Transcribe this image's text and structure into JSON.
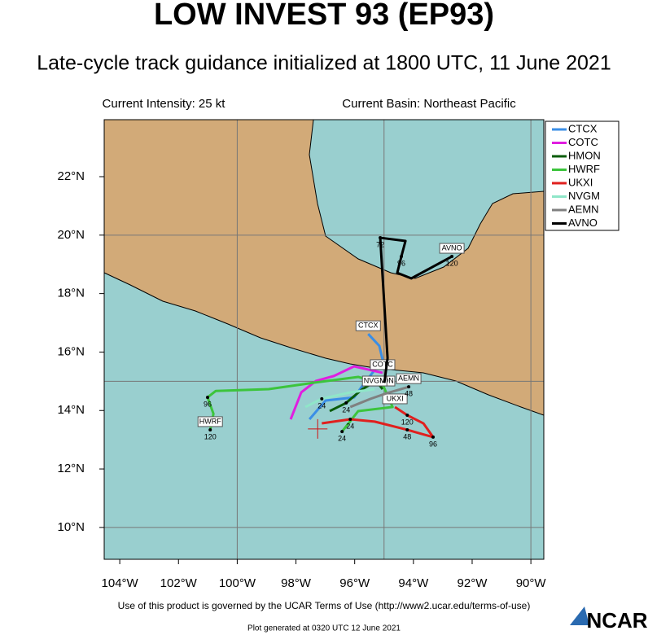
{
  "chart_data": {
    "type": "track-map",
    "title": "LOW INVEST 93 (EP93)",
    "subtitle": "Late-cycle track guidance initialized at 1800 UTC, 11 June 2021",
    "intensity": "Current Intensity: 25 kt",
    "basin": "Current Basin: Northeast Pacific",
    "footer": "Use of this product is governed by the UCAR Terms of Use (http://www2.ucar.edu/terms-of-use)",
    "generated": "Plot generated at 0320 UTC  12 June 2021",
    "logo": "NCAR",
    "xlim": [
      -104.53,
      -89.56
    ],
    "ylim": [
      8.91,
      23.95
    ],
    "xticks": [
      {
        "value": -104,
        "label": "104°W"
      },
      {
        "value": -102,
        "label": "102°W"
      },
      {
        "value": -100,
        "label": "100°W"
      },
      {
        "value": -98,
        "label": "98°W"
      },
      {
        "value": -96,
        "label": "96°W"
      },
      {
        "value": -94,
        "label": "94°W"
      },
      {
        "value": -92,
        "label": "92°W"
      },
      {
        "value": -90,
        "label": "90°W"
      }
    ],
    "yticks": [
      {
        "value": 10,
        "label": "10°N"
      },
      {
        "value": 12,
        "label": "12°N"
      },
      {
        "value": 14,
        "label": "14°N"
      },
      {
        "value": 16,
        "label": "16°N"
      },
      {
        "value": 18,
        "label": "18°N"
      },
      {
        "value": 20,
        "label": "20°N"
      },
      {
        "value": 22,
        "label": "22°N"
      }
    ],
    "grid_lon": [
      -100,
      -95,
      -90
    ],
    "grid_lat": [
      10,
      15,
      20
    ],
    "storm_position": [
      -97.26,
      13.37
    ],
    "series": [
      {
        "name": "CTCX",
        "color": "#3a8ee6",
        "lon": [
          -97.54,
          -96.99,
          -96.02,
          -95.66,
          -95.05,
          -95.16,
          -95.54
        ],
        "lat": [
          13.7,
          14.34,
          14.45,
          14.95,
          15.73,
          16.21,
          16.62
        ],
        "hours": []
      },
      {
        "name": "COTC",
        "color": "#e01ee0",
        "lon": [
          -98.18,
          -97.82,
          -97.32,
          -96.71,
          -96.02,
          -95.05
        ],
        "lat": [
          13.7,
          14.62,
          15.01,
          15.18,
          15.51,
          15.29
        ],
        "hours": []
      },
      {
        "name": "HMON",
        "color": "#0a5c0a",
        "lon": [
          -96.85,
          -96.29,
          -95.74,
          -95.27,
          -95.05
        ],
        "lat": [
          13.98,
          14.26,
          14.73,
          15.01,
          14.73
        ],
        "hours": [
          {
            "hour": 24,
            "lon": -96.29,
            "lat": 14.26
          }
        ]
      },
      {
        "name": "HWRF",
        "color": "#3cc43c",
        "lon": [
          -96.43,
          -95.88,
          -94.71,
          -95.05,
          -95.88,
          -97.4,
          -98.93,
          -100.73,
          -101.01,
          -100.81,
          -100.92
        ],
        "lat": [
          13.28,
          13.98,
          14.12,
          14.9,
          15.15,
          14.95,
          14.73,
          14.67,
          14.45,
          13.89,
          13.34
        ],
        "hours": [
          {
            "hour": 24,
            "lon": -96.43,
            "lat": 13.28
          },
          {
            "hour": 96,
            "lon": -101.01,
            "lat": 14.45
          },
          {
            "hour": 120,
            "lon": -100.92,
            "lat": 13.34
          }
        ]
      },
      {
        "name": "UKXI",
        "color": "#e0201e",
        "lon": [
          -97.12,
          -96.15,
          -95.32,
          -94.21,
          -93.33,
          -93.66,
          -94.21,
          -94.63
        ],
        "lat": [
          13.56,
          13.7,
          13.62,
          13.34,
          13.09,
          13.56,
          13.84,
          14.12
        ],
        "hours": [
          {
            "hour": 24,
            "lon": -96.15,
            "lat": 13.7
          },
          {
            "hour": 48,
            "lon": -94.21,
            "lat": 13.34
          },
          {
            "hour": 96,
            "lon": -93.33,
            "lat": 13.09
          },
          {
            "hour": 120,
            "lon": -94.21,
            "lat": 13.84
          }
        ]
      },
      {
        "name": "NVGM",
        "color": "#8fe6c8",
        "lon": [
          -97.68,
          -97.12,
          -96.15,
          -95.32
        ],
        "lat": [
          14.12,
          14.4,
          14.62,
          14.73
        ],
        "hours": [
          {
            "hour": 24,
            "lon": -97.12,
            "lat": 14.4
          }
        ]
      },
      {
        "name": "AEMN",
        "color": "#808080",
        "lon": [
          -96.15,
          -95.46,
          -94.91,
          -94.16
        ],
        "lat": [
          14.12,
          14.4,
          14.59,
          14.81
        ],
        "hours": [
          {
            "hour": 48,
            "lon": -94.16,
            "lat": 14.81
          }
        ]
      },
      {
        "name": "AVNO",
        "color": "#000000",
        "lon": [
          -94.99,
          -94.88,
          -95.13,
          -94.27,
          -94.41,
          -94.55,
          -94.07,
          -92.69
        ],
        "lat": [
          14.95,
          15.79,
          19.91,
          19.8,
          19.27,
          18.71,
          18.52,
          19.27
        ],
        "hours": [
          {
            "hour": 72,
            "lon": -95.13,
            "lat": 19.91
          },
          {
            "hour": 96,
            "lon": -94.41,
            "lat": 19.27
          },
          {
            "hour": 120,
            "lon": -92.69,
            "lat": 19.27
          }
        ]
      }
    ]
  }
}
